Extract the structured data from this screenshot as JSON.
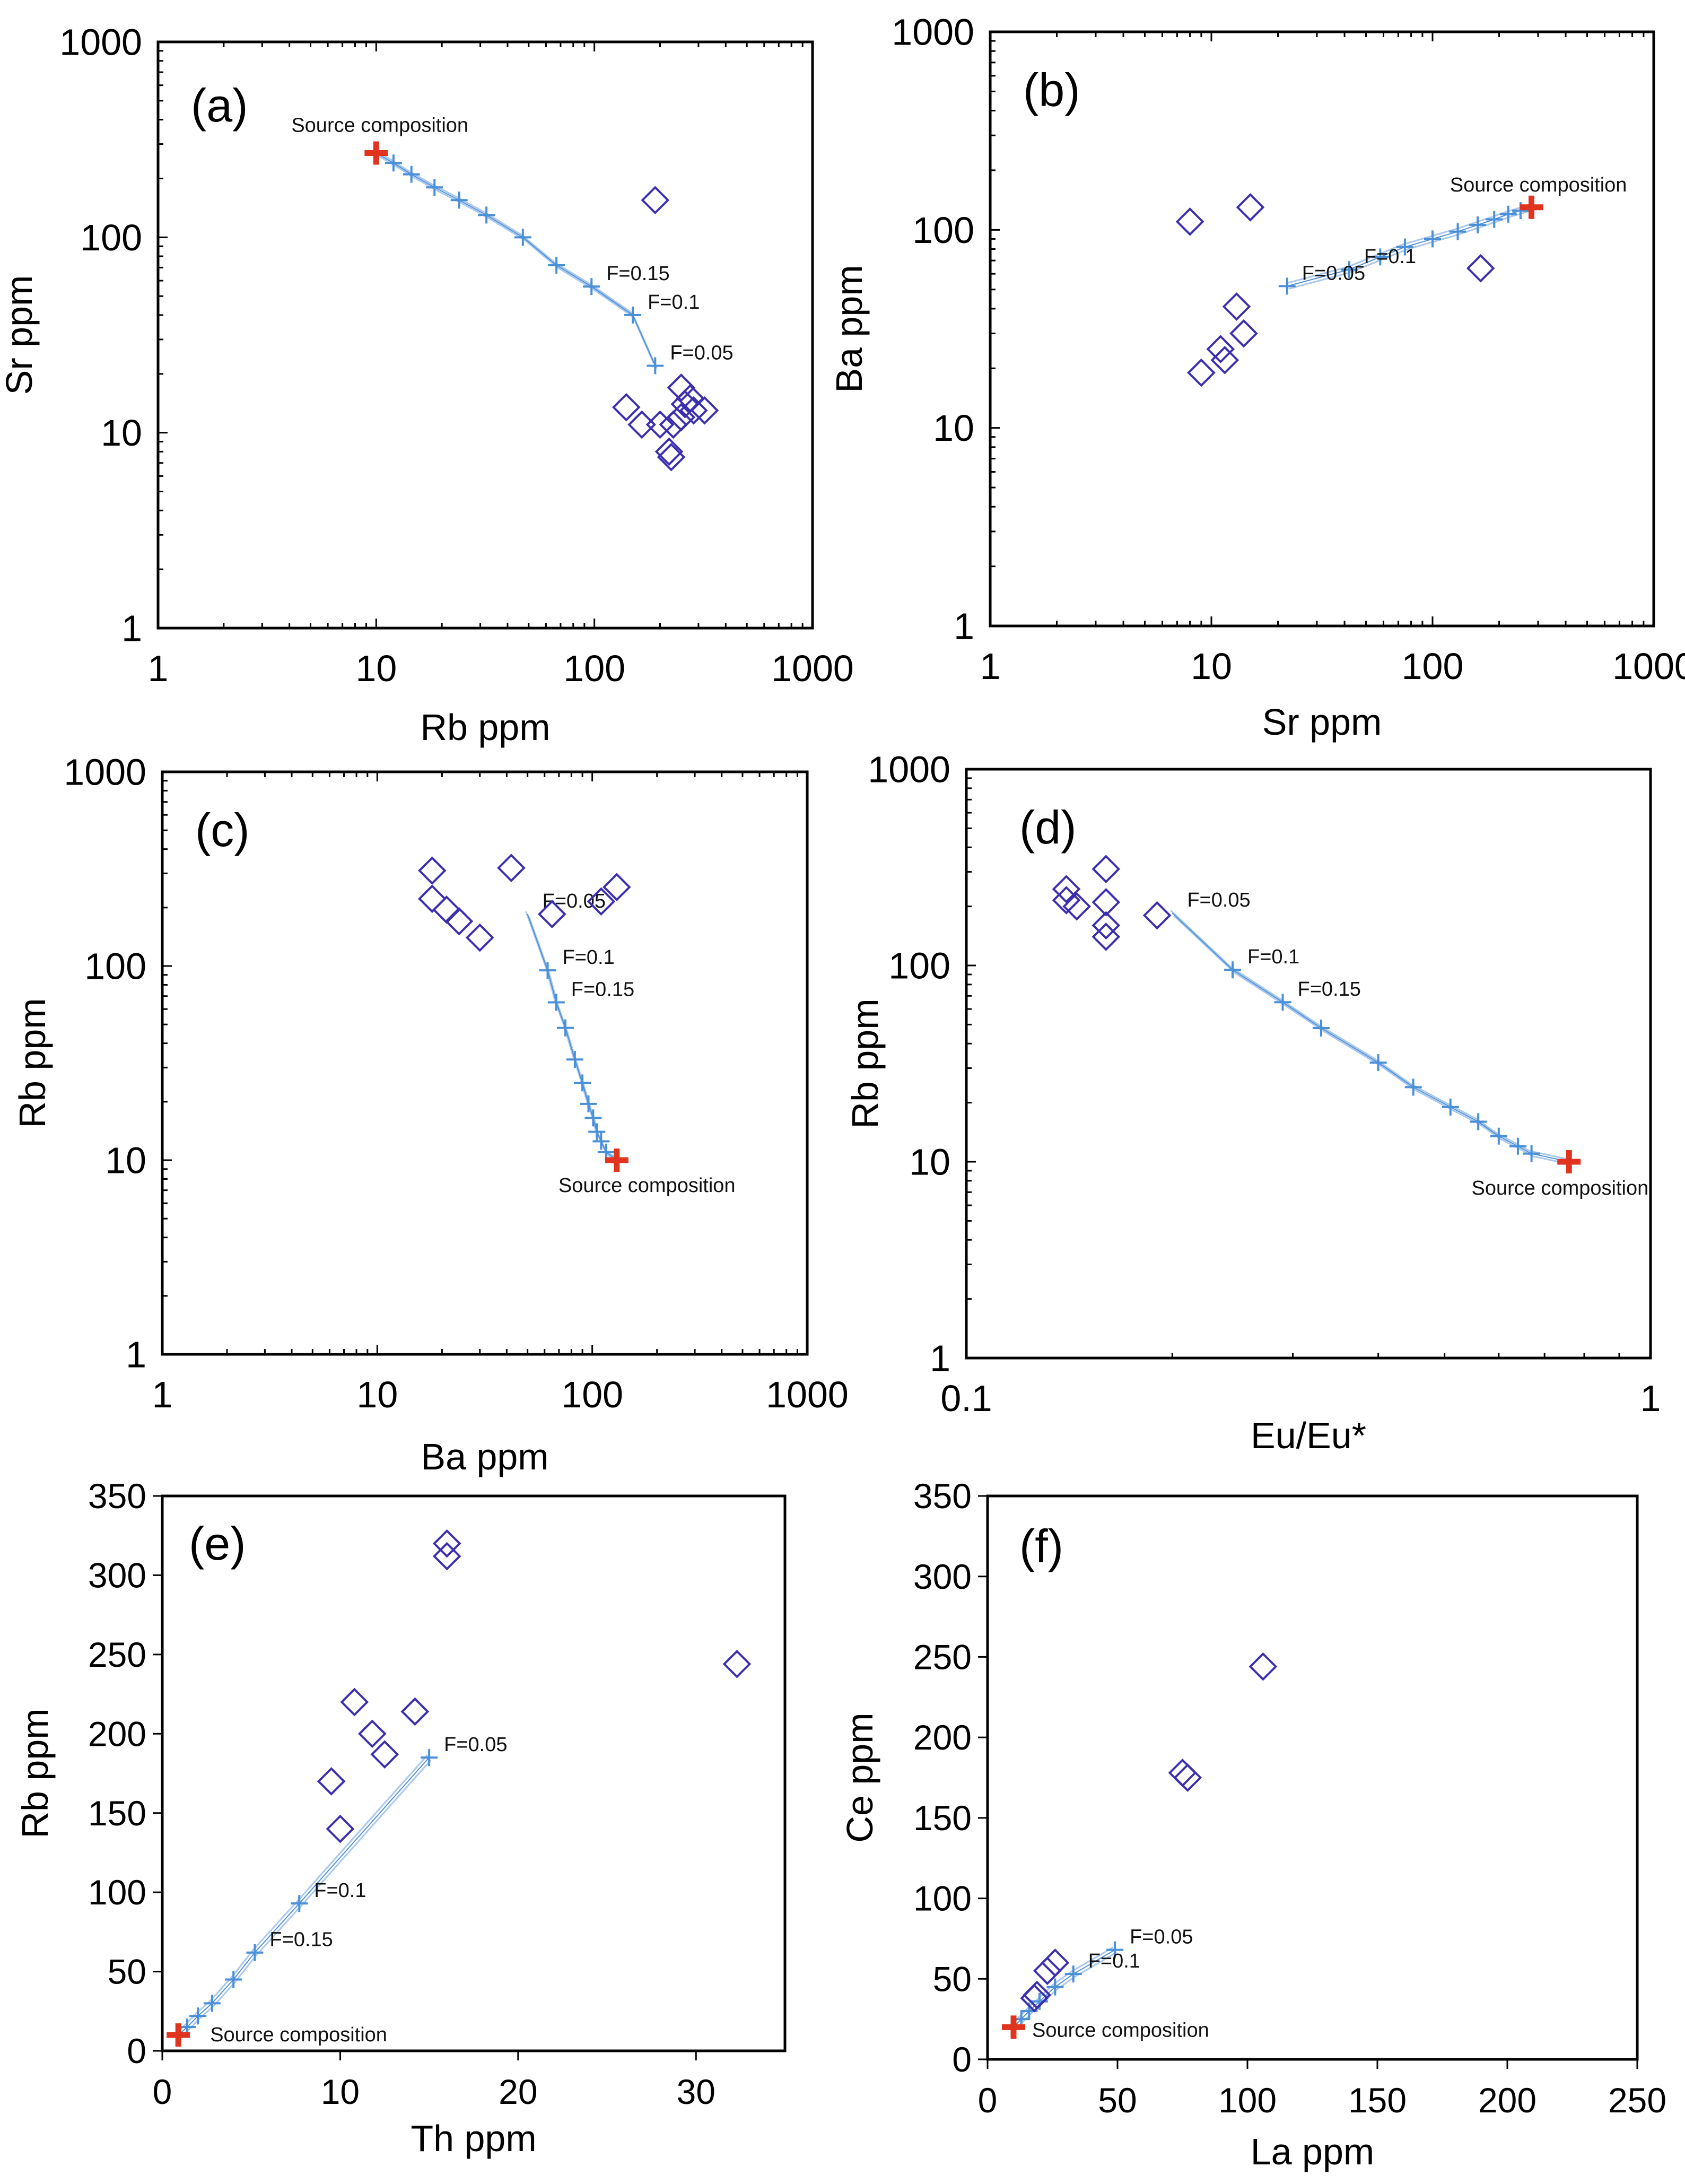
{
  "colors": {
    "frame": "#000000",
    "sample": "#3b2fb0",
    "model": "#4a90d9",
    "model_light": "#a9c7ec",
    "source": "#e0341f"
  },
  "chart_data": [
    {
      "id": "a",
      "type": "scatter",
      "scale": "log-log",
      "panel_label": "(a)",
      "xlabel": "Rb ppm",
      "ylabel": "Sr ppm",
      "xlim": [
        1,
        1000
      ],
      "ylim": [
        1,
        1000
      ],
      "xticks": [
        1,
        10,
        100,
        1000
      ],
      "yticks": [
        1,
        10,
        100,
        1000
      ],
      "xtick_labels": [
        "1",
        "10",
        "100",
        "1000"
      ],
      "ytick_labels": [
        "1",
        "10",
        "100",
        "1000"
      ],
      "source": {
        "label": "Source composition",
        "x": 10,
        "y": 270
      },
      "model_curve": {
        "points": [
          [
            10,
            270
          ],
          [
            12,
            240
          ],
          [
            14.5,
            210
          ],
          [
            18.5,
            180
          ],
          [
            24,
            155
          ],
          [
            32,
            130
          ],
          [
            47,
            100
          ],
          [
            67,
            72
          ],
          [
            97,
            56
          ],
          [
            150,
            40
          ],
          [
            190,
            22
          ]
        ],
        "f_labels": [
          {
            "text": "F=0.15",
            "x": 97,
            "y": 56
          },
          {
            "text": "F=0.1",
            "x": 150,
            "y": 40
          },
          {
            "text": "F=0.05",
            "x": 190,
            "y": 22
          }
        ]
      },
      "samples": [
        [
          190,
          155
        ],
        [
          250,
          17
        ],
        [
          275,
          15
        ],
        [
          260,
          14
        ],
        [
          320,
          13
        ],
        [
          285,
          13
        ],
        [
          140,
          13.5
        ],
        [
          200,
          11
        ],
        [
          165,
          11
        ],
        [
          250,
          12
        ],
        [
          230,
          11
        ],
        [
          220,
          8
        ],
        [
          225,
          7.5
        ]
      ]
    },
    {
      "id": "b",
      "type": "scatter",
      "scale": "log-log",
      "panel_label": "(b)",
      "xlabel": "Sr ppm",
      "ylabel": "Ba ppm",
      "xlim": [
        1,
        1000
      ],
      "ylim": [
        1,
        1000
      ],
      "xticks": [
        1,
        10,
        100,
        1000
      ],
      "yticks": [
        1,
        10,
        100,
        1000
      ],
      "xtick_labels": [
        "1",
        "10",
        "100",
        "1000"
      ],
      "ytick_labels": [
        "1",
        "10",
        "100",
        "1000"
      ],
      "source": {
        "label": "Source composition",
        "x": 280,
        "y": 130
      },
      "model_curve": {
        "points": [
          [
            280,
            130
          ],
          [
            250,
            125
          ],
          [
            220,
            120
          ],
          [
            190,
            113
          ],
          [
            160,
            106
          ],
          [
            130,
            98
          ],
          [
            100,
            90
          ],
          [
            75,
            82
          ],
          [
            58,
            73
          ],
          [
            42,
            63
          ],
          [
            22,
            52
          ]
        ],
        "f_labels": [
          {
            "text": "F=0.1",
            "x": 42,
            "y": 63
          },
          {
            "text": "F=0.05",
            "x": 22,
            "y": 52
          }
        ]
      },
      "samples": [
        [
          8,
          110
        ],
        [
          15,
          130
        ],
        [
          165,
          64
        ],
        [
          13,
          41
        ],
        [
          14,
          30
        ],
        [
          11,
          25
        ],
        [
          11.5,
          22
        ],
        [
          9,
          19
        ]
      ]
    },
    {
      "id": "c",
      "type": "scatter",
      "scale": "log-log",
      "panel_label": "(c)",
      "xlabel": "Ba ppm",
      "ylabel": "Rb ppm",
      "xlim": [
        1,
        1000
      ],
      "ylim": [
        1,
        1000
      ],
      "xticks": [
        1,
        10,
        100,
        1000
      ],
      "yticks": [
        1,
        10,
        100,
        1000
      ],
      "xtick_labels": [
        "1",
        "10",
        "100",
        "1000"
      ],
      "ytick_labels": [
        "1",
        "10",
        "100",
        "1000"
      ],
      "source": {
        "label": "Source composition",
        "x": 130,
        "y": 10
      },
      "model_curve": {
        "points": [
          [
            50,
            185
          ],
          [
            62,
            95
          ],
          [
            68,
            65
          ],
          [
            75,
            48
          ],
          [
            83,
            33
          ],
          [
            90,
            25
          ],
          [
            96,
            19.5
          ],
          [
            101,
            16.5
          ],
          [
            105,
            14
          ],
          [
            110,
            12.5
          ],
          [
            116,
            11
          ],
          [
            130,
            10
          ]
        ],
        "f_labels": [
          {
            "text": "F=0.05",
            "x": 50,
            "y": 185
          },
          {
            "text": "F=0.1",
            "x": 62,
            "y": 95
          },
          {
            "text": "F=0.15",
            "x": 68,
            "y": 65
          }
        ]
      },
      "samples": [
        [
          18,
          310
        ],
        [
          42,
          320
        ],
        [
          130,
          255
        ],
        [
          110,
          215
        ],
        [
          18,
          222
        ],
        [
          21,
          195
        ],
        [
          24,
          170
        ],
        [
          30,
          140
        ],
        [
          65,
          185
        ]
      ]
    },
    {
      "id": "d",
      "type": "scatter",
      "scale": "log-log",
      "panel_label": "(d)",
      "xlabel": "Eu/Eu*",
      "ylabel": "Rb ppm",
      "xlim": [
        0.1,
        1
      ],
      "ylim": [
        1,
        1000
      ],
      "xticks": [
        0.1,
        1
      ],
      "yticks": [
        1,
        10,
        100,
        1000
      ],
      "xtick_labels": [
        "0.1",
        "1"
      ],
      "ytick_labels": [
        "1",
        "10",
        "100",
        "1000"
      ],
      "source": {
        "label": "Source composition",
        "x": 0.76,
        "y": 10
      },
      "model_curve": {
        "points": [
          [
            0.2,
            185
          ],
          [
            0.245,
            95
          ],
          [
            0.29,
            65
          ],
          [
            0.33,
            48
          ],
          [
            0.4,
            32
          ],
          [
            0.45,
            24
          ],
          [
            0.51,
            19
          ],
          [
            0.56,
            16
          ],
          [
            0.6,
            13.5
          ],
          [
            0.64,
            12
          ],
          [
            0.67,
            11
          ],
          [
            0.76,
            10
          ]
        ],
        "f_labels": [
          {
            "text": "F=0.05",
            "x": 0.2,
            "y": 185
          },
          {
            "text": "F=0.1",
            "x": 0.245,
            "y": 95
          },
          {
            "text": "F=0.15",
            "x": 0.29,
            "y": 65
          }
        ]
      },
      "samples": [
        [
          0.14,
          245
        ],
        [
          0.14,
          215
        ],
        [
          0.145,
          200
        ],
        [
          0.16,
          310
        ],
        [
          0.16,
          210
        ],
        [
          0.16,
          160
        ],
        [
          0.16,
          140
        ],
        [
          0.19,
          180
        ]
      ]
    },
    {
      "id": "e",
      "type": "scatter",
      "scale": "linear",
      "panel_label": "(e)",
      "xlabel": "Th ppm",
      "ylabel": "Rb ppm",
      "xlim": [
        0,
        35
      ],
      "ylim": [
        0,
        350
      ],
      "xticks": [
        0,
        10,
        20,
        30
      ],
      "yticks": [
        0,
        50,
        100,
        150,
        200,
        250,
        300,
        350
      ],
      "xtick_labels": [
        "0",
        "10",
        "20",
        "30"
      ],
      "ytick_labels": [
        "0",
        "50",
        "100",
        "150",
        "200",
        "250",
        "300",
        "350"
      ],
      "source": {
        "label": "Source composition",
        "x": 0.9,
        "y": 10
      },
      "model_curve": {
        "points": [
          [
            0.9,
            10
          ],
          [
            1.4,
            15
          ],
          [
            2,
            22
          ],
          [
            2.8,
            30
          ],
          [
            4,
            45
          ],
          [
            5.2,
            62
          ],
          [
            7.7,
            93
          ],
          [
            15,
            185
          ]
        ],
        "f_labels": [
          {
            "text": "F=0.15",
            "x": 5.2,
            "y": 62
          },
          {
            "text": "F=0.1",
            "x": 7.7,
            "y": 93
          },
          {
            "text": "F=0.05",
            "x": 15,
            "y": 185
          }
        ]
      },
      "samples": [
        [
          16,
          320
        ],
        [
          16,
          312
        ],
        [
          32.3,
          244
        ],
        [
          10.8,
          220
        ],
        [
          14.2,
          214
        ],
        [
          11.8,
          200
        ],
        [
          12.5,
          187
        ],
        [
          9.5,
          170
        ],
        [
          10,
          140
        ]
      ]
    },
    {
      "id": "f",
      "type": "scatter",
      "scale": "linear",
      "panel_label": "(f)",
      "xlabel": "La ppm",
      "ylabel": "Ce ppm",
      "xlim": [
        0,
        250
      ],
      "ylim": [
        0,
        350
      ],
      "xticks": [
        0,
        50,
        100,
        150,
        200,
        250
      ],
      "yticks": [
        0,
        50,
        100,
        150,
        200,
        250,
        300,
        350
      ],
      "xtick_labels": [
        "0",
        "50",
        "100",
        "150",
        "200",
        "250"
      ],
      "ytick_labels": [
        "0",
        "50",
        "100",
        "150",
        "200",
        "250",
        "300",
        "350"
      ],
      "source": {
        "label": "Source composition",
        "x": 10,
        "y": 20
      },
      "model_curve": {
        "points": [
          [
            10,
            20
          ],
          [
            13,
            25
          ],
          [
            16,
            30
          ],
          [
            20,
            36
          ],
          [
            26,
            45
          ],
          [
            33,
            53
          ],
          [
            49,
            68
          ]
        ],
        "f_labels": [
          {
            "text": "F=0.1",
            "x": 33,
            "y": 53
          },
          {
            "text": "F=0.05",
            "x": 49,
            "y": 68
          }
        ]
      },
      "samples": [
        [
          106,
          244
        ],
        [
          75,
          178
        ],
        [
          77,
          175
        ],
        [
          26,
          60
        ],
        [
          23,
          55
        ],
        [
          19,
          40
        ],
        [
          18,
          38
        ]
      ]
    }
  ]
}
